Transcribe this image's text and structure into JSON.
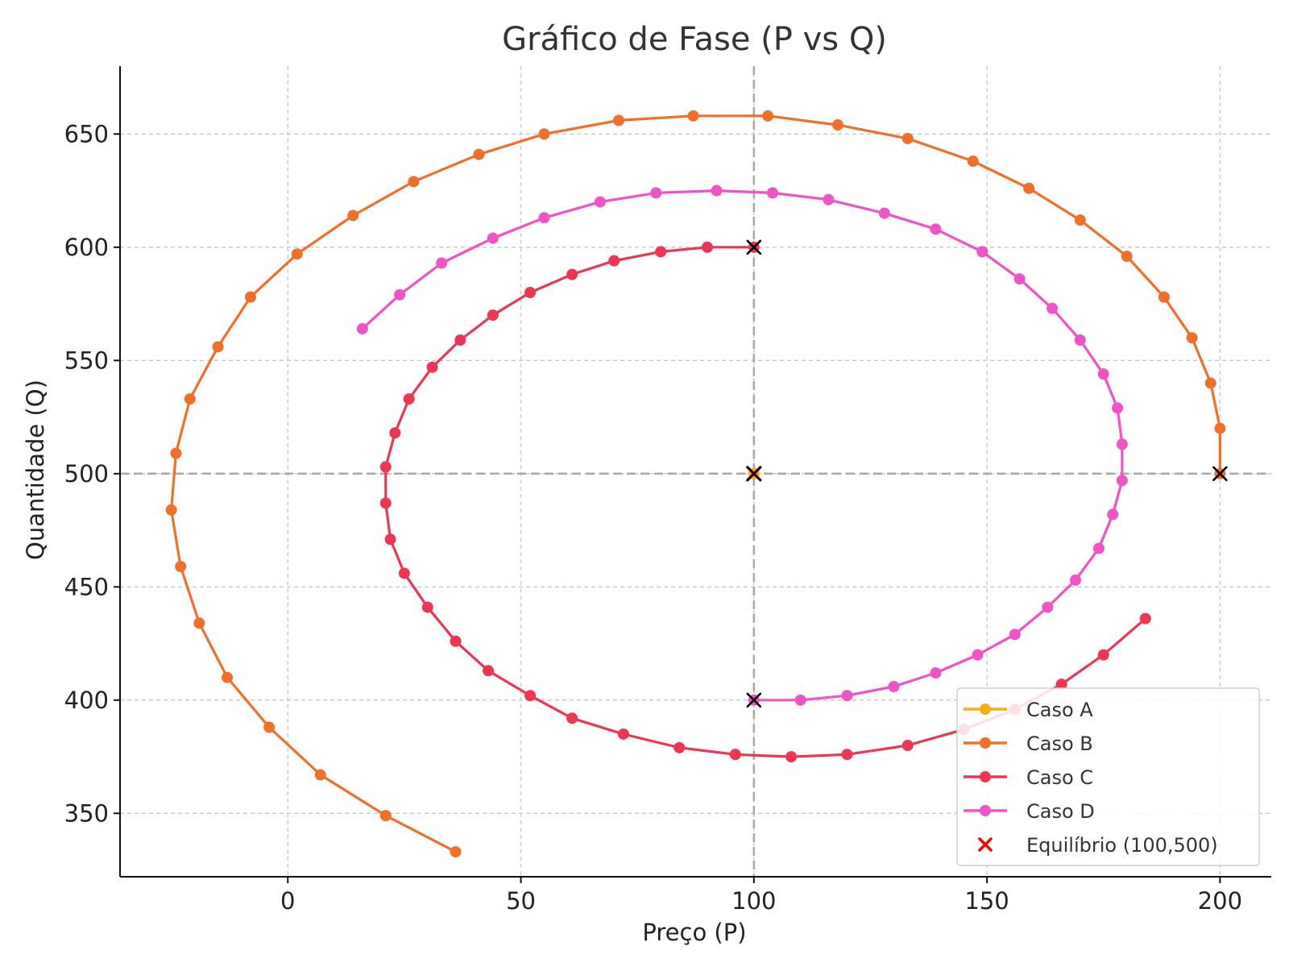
{
  "chart_data": {
    "type": "line",
    "title": "Gráfico de Fase (P vs Q)",
    "xlabel": "Preço (P)",
    "ylabel": "Quantidade (Q)",
    "xlim": [
      -36,
      211
    ],
    "ylim": [
      322,
      680
    ],
    "xticks": [
      0,
      50,
      100,
      150,
      200
    ],
    "yticks": [
      350,
      400,
      450,
      500,
      550,
      600,
      650
    ],
    "grid": true,
    "legend_position": "lower-right",
    "reference_lines": {
      "x": 100,
      "y": 500
    },
    "series": [
      {
        "name": "Caso A",
        "color": "#fbab14",
        "points": [
          [
            100,
            500
          ]
        ]
      },
      {
        "name": "Caso B",
        "color": "#f0702a",
        "points": [
          [
            200,
            500
          ],
          [
            200,
            520
          ],
          [
            198,
            540
          ],
          [
            194,
            560
          ],
          [
            188,
            578
          ],
          [
            180,
            596
          ],
          [
            170,
            612
          ],
          [
            159,
            626
          ],
          [
            147,
            638
          ],
          [
            133,
            648
          ],
          [
            118,
            654
          ],
          [
            103,
            658
          ],
          [
            87,
            658
          ],
          [
            71,
            656
          ],
          [
            55,
            650
          ],
          [
            41,
            641
          ],
          [
            27,
            629
          ],
          [
            14,
            614
          ],
          [
            2,
            597
          ],
          [
            -8,
            578
          ],
          [
            -15,
            556
          ],
          [
            -21,
            533
          ],
          [
            -24,
            509
          ],
          [
            -25,
            484
          ],
          [
            -23,
            459
          ],
          [
            -19,
            434
          ],
          [
            -13,
            410
          ],
          [
            -4,
            388
          ],
          [
            7,
            367
          ],
          [
            21,
            349
          ],
          [
            36,
            333
          ]
        ]
      },
      {
        "name": "Caso C",
        "color": "#ee3654",
        "points": [
          [
            100,
            600
          ],
          [
            90,
            600
          ],
          [
            80,
            598
          ],
          [
            70,
            594
          ],
          [
            61,
            588
          ],
          [
            52,
            580
          ],
          [
            44,
            570
          ],
          [
            37,
            559
          ],
          [
            31,
            547
          ],
          [
            26,
            533
          ],
          [
            23,
            518
          ],
          [
            21,
            503
          ],
          [
            21,
            487
          ],
          [
            22,
            471
          ],
          [
            25,
            456
          ],
          [
            30,
            441
          ],
          [
            36,
            426
          ],
          [
            43,
            413
          ],
          [
            52,
            402
          ],
          [
            61,
            392
          ],
          [
            72,
            385
          ],
          [
            84,
            379
          ],
          [
            96,
            376
          ],
          [
            108,
            375
          ],
          [
            120,
            376
          ],
          [
            133,
            380
          ],
          [
            145,
            387
          ],
          [
            156,
            396
          ],
          [
            166,
            407
          ],
          [
            175,
            420
          ],
          [
            184,
            436
          ]
        ]
      },
      {
        "name": "Caso D",
        "color": "#f052c8",
        "points": [
          [
            100,
            400
          ],
          [
            110,
            400
          ],
          [
            120,
            402
          ],
          [
            130,
            406
          ],
          [
            139,
            412
          ],
          [
            148,
            420
          ],
          [
            156,
            429
          ],
          [
            163,
            441
          ],
          [
            169,
            453
          ],
          [
            174,
            467
          ],
          [
            177,
            482
          ],
          [
            179,
            497
          ],
          [
            179,
            513
          ],
          [
            178,
            529
          ],
          [
            175,
            544
          ],
          [
            170,
            559
          ],
          [
            164,
            573
          ],
          [
            157,
            586
          ],
          [
            149,
            598
          ],
          [
            139,
            608
          ],
          [
            128,
            615
          ],
          [
            116,
            621
          ],
          [
            104,
            624
          ],
          [
            92,
            625
          ],
          [
            79,
            624
          ],
          [
            67,
            620
          ],
          [
            55,
            613
          ],
          [
            44,
            604
          ],
          [
            33,
            593
          ],
          [
            24,
            579
          ],
          [
            16,
            564
          ]
        ]
      },
      {
        "name": "Equilíbrio (100,500)",
        "color": "#ff0000",
        "marker": "x",
        "points": [
          [
            100,
            500
          ]
        ]
      }
    ],
    "start_markers": [
      [
        100,
        500
      ],
      [
        200,
        500
      ],
      [
        100,
        600
      ],
      [
        100,
        400
      ]
    ]
  }
}
